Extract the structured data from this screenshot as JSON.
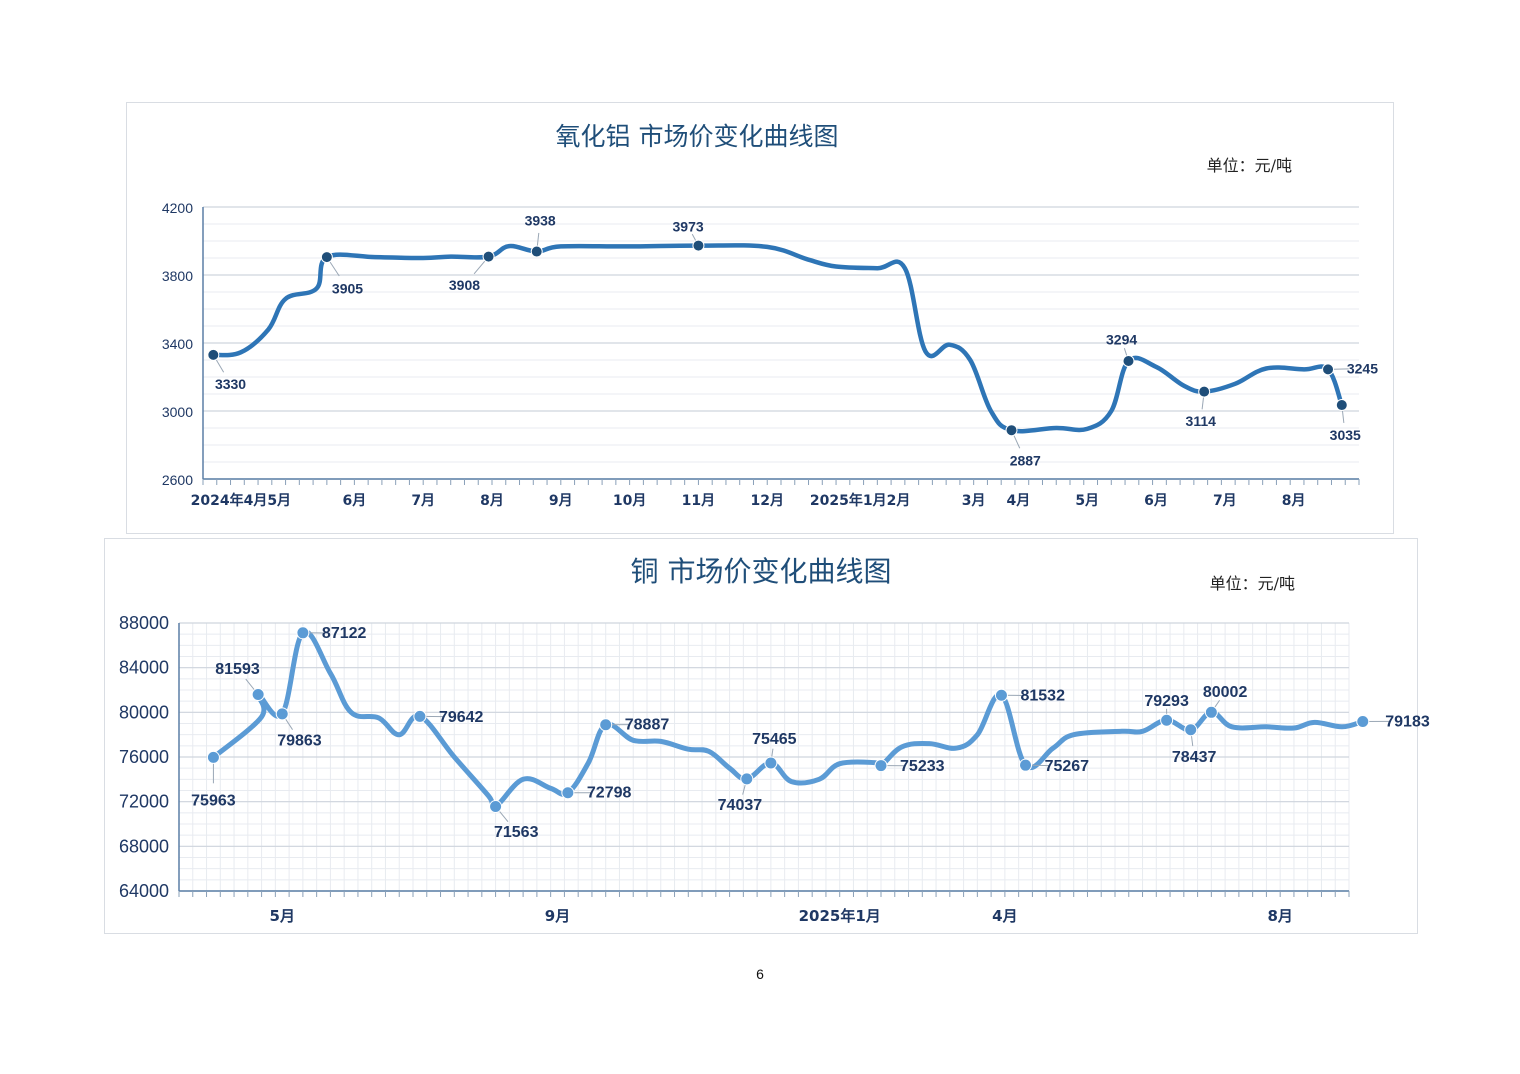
{
  "page": {
    "number": "6"
  },
  "colors": {
    "alumina_line": "#2e75b6",
    "alumina_marker": "#1f4e79",
    "copper_line": "#5b9bd5",
    "title": "#1f4e79",
    "label": "#1f3864"
  },
  "chart_data": [
    {
      "type": "line",
      "title": "氧化铝 市场价变化曲线图",
      "unit": "单位：元/吨",
      "ylim": [
        2600,
        4200
      ],
      "yticks": [
        2600,
        3000,
        3400,
        3800,
        4200
      ],
      "grid": true,
      "x_tick_labels": [
        {
          "x": 0.55,
          "label": "2024年4月5月"
        },
        {
          "x": 2.2,
          "label": "6月"
        },
        {
          "x": 3.2,
          "label": "7月"
        },
        {
          "x": 4.2,
          "label": "8月"
        },
        {
          "x": 5.2,
          "label": "9月"
        },
        {
          "x": 6.2,
          "label": "10月"
        },
        {
          "x": 7.2,
          "label": "11月"
        },
        {
          "x": 8.2,
          "label": "12月"
        },
        {
          "x": 9.55,
          "label": "2025年1月2月"
        },
        {
          "x": 11.2,
          "label": "3月"
        },
        {
          "x": 11.85,
          "label": "4月"
        },
        {
          "x": 12.85,
          "label": "5月"
        },
        {
          "x": 13.85,
          "label": "6月"
        },
        {
          "x": 14.85,
          "label": "7月"
        },
        {
          "x": 15.85,
          "label": "8月"
        }
      ],
      "x_range": [
        0,
        16.8
      ],
      "series": [
        {
          "points": [
            [
              0.15,
              3330
            ],
            [
              0.55,
              3345
            ],
            [
              0.95,
              3480
            ],
            [
              1.2,
              3660
            ],
            [
              1.65,
              3720
            ],
            [
              1.8,
              3905
            ],
            [
              2.5,
              3905
            ],
            [
              3.2,
              3900
            ],
            [
              3.6,
              3908
            ],
            [
              4.15,
              3908
            ],
            [
              4.45,
              3970
            ],
            [
              4.85,
              3938
            ],
            [
              5.2,
              3968
            ],
            [
              6.2,
              3968
            ],
            [
              7.2,
              3973
            ],
            [
              8.2,
              3965
            ],
            [
              8.8,
              3890
            ],
            [
              9.2,
              3850
            ],
            [
              9.8,
              3840
            ],
            [
              10.2,
              3840
            ],
            [
              10.5,
              3350
            ],
            [
              10.85,
              3390
            ],
            [
              11.15,
              3300
            ],
            [
              11.45,
              3000
            ],
            [
              11.75,
              2887
            ],
            [
              12.4,
              2900
            ],
            [
              12.85,
              2895
            ],
            [
              13.2,
              3000
            ],
            [
              13.45,
              3294
            ],
            [
              13.85,
              3260
            ],
            [
              14.25,
              3150
            ],
            [
              14.55,
              3114
            ],
            [
              15.0,
              3160
            ],
            [
              15.45,
              3250
            ],
            [
              16.0,
              3245
            ],
            [
              16.35,
              3245
            ],
            [
              16.55,
              3035
            ]
          ],
          "markers": [
            {
              "x": 0.15,
              "y": 3330,
              "label": "3330",
              "lx": 0.4,
              "ly": 3160
            },
            {
              "x": 1.8,
              "y": 3905,
              "label": "3905",
              "lx": 2.1,
              "ly": 3720
            },
            {
              "x": 4.15,
              "y": 3908,
              "label": "3908",
              "lx": 3.8,
              "ly": 3740
            },
            {
              "x": 4.85,
              "y": 3938,
              "label": "3938",
              "lx": 4.9,
              "ly": 4120
            },
            {
              "x": 7.2,
              "y": 3973,
              "label": "3973",
              "lx": 7.05,
              "ly": 4085
            },
            {
              "x": 11.75,
              "y": 2887,
              "label": "2887",
              "lx": 11.95,
              "ly": 2710
            },
            {
              "x": 13.45,
              "y": 3294,
              "label": "3294",
              "lx": 13.35,
              "ly": 3420
            },
            {
              "x": 14.55,
              "y": 3114,
              "label": "3114",
              "lx": 14.5,
              "ly": 2940
            },
            {
              "x": 16.35,
              "y": 3245,
              "label": "3245",
              "lx": 16.85,
              "ly": 3250
            },
            {
              "x": 16.55,
              "y": 3035,
              "label": "3035",
              "lx": 16.6,
              "ly": 2860
            }
          ]
        }
      ]
    },
    {
      "type": "line",
      "title": "铜 市场价变化曲线图",
      "unit": "单位：元/吨",
      "ylim": [
        64000,
        88000
      ],
      "yticks": [
        64000,
        68000,
        72000,
        76000,
        80000,
        84000,
        88000
      ],
      "grid": true,
      "x_tick_labels": [
        {
          "x": 1.5,
          "label": "5月"
        },
        {
          "x": 5.5,
          "label": "9月"
        },
        {
          "x": 9.6,
          "label": "2025年1月"
        },
        {
          "x": 12.0,
          "label": "4月"
        },
        {
          "x": 16.0,
          "label": "8月"
        }
      ],
      "x_range": [
        0,
        17
      ],
      "series": [
        {
          "points": [
            [
              0.5,
              75963
            ],
            [
              1.2,
              79600
            ],
            [
              1.15,
              81593
            ],
            [
              1.5,
              79863
            ],
            [
              1.8,
              87122
            ],
            [
              2.2,
              83500
            ],
            [
              2.5,
              80000
            ],
            [
              2.9,
              79500
            ],
            [
              3.2,
              78000
            ],
            [
              3.5,
              79642
            ],
            [
              4.0,
              76000
            ],
            [
              4.5,
              72500
            ],
            [
              4.6,
              71563
            ],
            [
              5.0,
              74000
            ],
            [
              5.4,
              73200
            ],
            [
              5.65,
              72798
            ],
            [
              5.95,
              75500
            ],
            [
              6.2,
              78887
            ],
            [
              6.6,
              77500
            ],
            [
              7.0,
              77400
            ],
            [
              7.4,
              76700
            ],
            [
              7.7,
              76500
            ],
            [
              8.0,
              75000
            ],
            [
              8.25,
              74037
            ],
            [
              8.6,
              75465
            ],
            [
              8.9,
              73800
            ],
            [
              9.3,
              74000
            ],
            [
              9.6,
              75400
            ],
            [
              10.1,
              75500
            ],
            [
              10.2,
              75233
            ],
            [
              10.5,
              76900
            ],
            [
              10.9,
              77200
            ],
            [
              11.3,
              76800
            ],
            [
              11.6,
              78000
            ],
            [
              11.95,
              81532
            ],
            [
              12.3,
              75267
            ],
            [
              12.7,
              76800
            ],
            [
              13.0,
              78000
            ],
            [
              13.7,
              78300
            ],
            [
              14.0,
              78300
            ],
            [
              14.35,
              79293
            ],
            [
              14.7,
              78437
            ],
            [
              15.0,
              80002
            ],
            [
              15.3,
              78700
            ],
            [
              15.8,
              78700
            ],
            [
              16.2,
              78600
            ],
            [
              16.5,
              79100
            ],
            [
              16.9,
              78700
            ],
            [
              17.2,
              79183
            ]
          ],
          "markers": [
            {
              "x": 0.5,
              "y": 75963,
              "label": "75963",
              "lx": 0.5,
              "ly": 72100
            },
            {
              "x": 1.15,
              "y": 81593,
              "label": "81593",
              "lx": 0.85,
              "ly": 83900
            },
            {
              "x": 1.5,
              "y": 79863,
              "label": "79863",
              "lx": 1.75,
              "ly": 77500
            },
            {
              "x": 1.8,
              "y": 87122,
              "label": "87122",
              "lx": 2.4,
              "ly": 87100
            },
            {
              "x": 3.5,
              "y": 79642,
              "label": "79642",
              "lx": 4.1,
              "ly": 79600
            },
            {
              "x": 4.6,
              "y": 71563,
              "label": "71563",
              "lx": 4.9,
              "ly": 69300
            },
            {
              "x": 5.65,
              "y": 72798,
              "label": "72798",
              "lx": 6.25,
              "ly": 72800
            },
            {
              "x": 6.2,
              "y": 78887,
              "label": "78887",
              "lx": 6.8,
              "ly": 78900
            },
            {
              "x": 8.25,
              "y": 74037,
              "label": "74037",
              "lx": 8.15,
              "ly": 71700
            },
            {
              "x": 8.6,
              "y": 75465,
              "label": "75465",
              "lx": 8.65,
              "ly": 77600
            },
            {
              "x": 10.2,
              "y": 75233,
              "label": "75233",
              "lx": 10.8,
              "ly": 75200
            },
            {
              "x": 11.95,
              "y": 81532,
              "label": "81532",
              "lx": 12.55,
              "ly": 81500
            },
            {
              "x": 12.3,
              "y": 75267,
              "label": "75267",
              "lx": 12.9,
              "ly": 75200
            },
            {
              "x": 14.35,
              "y": 79293,
              "label": "79293",
              "lx": 14.35,
              "ly": 81000
            },
            {
              "x": 14.7,
              "y": 78437,
              "label": "78437",
              "lx": 14.75,
              "ly": 76000
            },
            {
              "x": 15.0,
              "y": 80002,
              "label": "80002",
              "lx": 15.2,
              "ly": 81800
            },
            {
              "x": 17.2,
              "y": 79183,
              "label": "79183",
              "lx": 17.85,
              "ly": 79200
            }
          ]
        }
      ]
    }
  ]
}
